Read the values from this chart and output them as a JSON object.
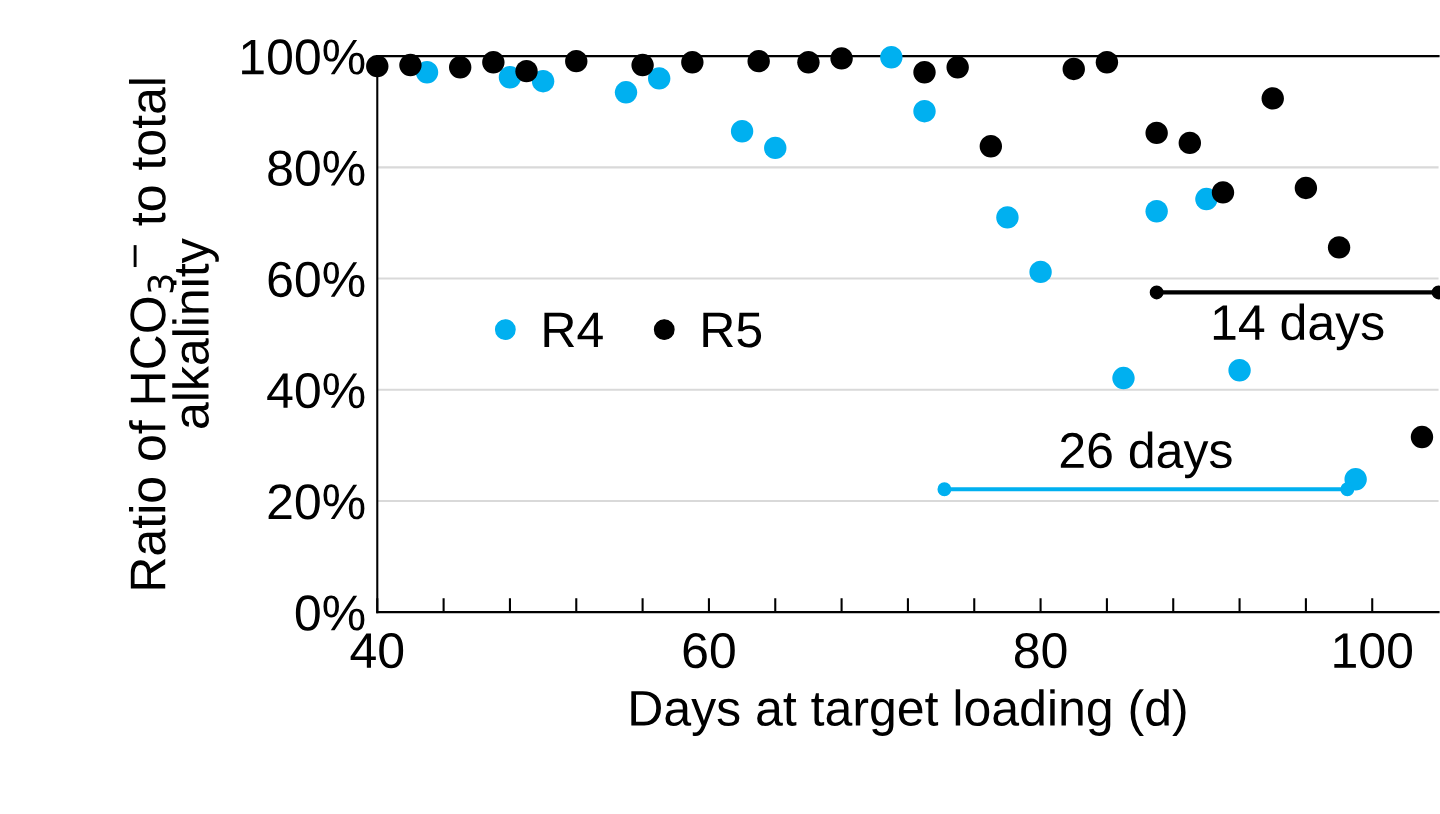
{
  "chart_data": {
    "type": "scatter",
    "xlabel": "Days at target loading (d)",
    "ylabel": "Ratio of HCO$_{3}$$^{−}$ to total alkalinity",
    "xlim": [
      40,
      104
    ],
    "xticks": [
      40,
      {
        "value": 44,
        "label": null
      },
      {
        "value": 48,
        "label": null
      },
      {
        "value": 52,
        "label": null
      },
      {
        "value": 56,
        "label": null
      },
      60,
      {
        "value": 64,
        "label": null
      },
      {
        "value": 68,
        "label": null
      },
      {
        "value": 72,
        "label": null
      },
      {
        "value": 76,
        "label": null
      },
      80,
      {
        "value": 84,
        "label": null
      },
      {
        "value": 88,
        "label": null
      },
      {
        "value": 92,
        "label": null
      },
      {
        "value": 96,
        "label": null
      },
      100
    ],
    "ylim": [
      0,
      100
    ],
    "yticks": [
      {
        "value": 0,
        "label": "0%"
      },
      {
        "value": 20,
        "label": "20%"
      },
      {
        "value": 40,
        "label": "40%"
      },
      {
        "value": 60,
        "label": "60%"
      },
      {
        "value": 80,
        "label": "80%"
      },
      {
        "value": 100,
        "label": "100%"
      }
    ],
    "grid": "y",
    "legend": "center left",
    "marker": "circle",
    "series": [
      {
        "name": "R4",
        "color": "#00b0f0",
        "x": [
          43,
          48,
          50,
          55,
          57,
          62,
          64,
          71,
          73,
          78,
          80,
          85,
          87,
          90,
          92,
          99
        ],
        "values": [
          97.1,
          96.2,
          95.5,
          93.5,
          96.0,
          86.5,
          83.5,
          99.8,
          90.1,
          71.0,
          61.2,
          42.1,
          72.1,
          74.3,
          43.5,
          23.9
        ]
      },
      {
        "name": "R5",
        "color": "#000000",
        "x": [
          40,
          42,
          45,
          47,
          49,
          52,
          56,
          59,
          63,
          66,
          68,
          73,
          75,
          77,
          82,
          84,
          87,
          89,
          91,
          94,
          96,
          98,
          103
        ],
        "values": [
          98.2,
          98.4,
          98.0,
          98.9,
          97.3,
          99.1,
          98.4,
          98.9,
          99.1,
          98.9,
          99.6,
          97.1,
          98.0,
          83.8,
          97.7,
          98.9,
          86.2,
          84.4,
          75.5,
          92.4,
          76.3,
          65.6,
          31.5
        ]
      },
      {
        "type": "line",
        "color": "#000000",
        "x": [
          87,
          104
        ],
        "values": [
          57.5,
          57.5
        ]
      },
      {
        "type": "line",
        "color": "#00b0f0",
        "x": [
          74.2,
          98.5
        ],
        "values": [
          22.1,
          22.1
        ]
      }
    ],
    "annotations": [
      "14 days",
      "26 days"
    ]
  }
}
